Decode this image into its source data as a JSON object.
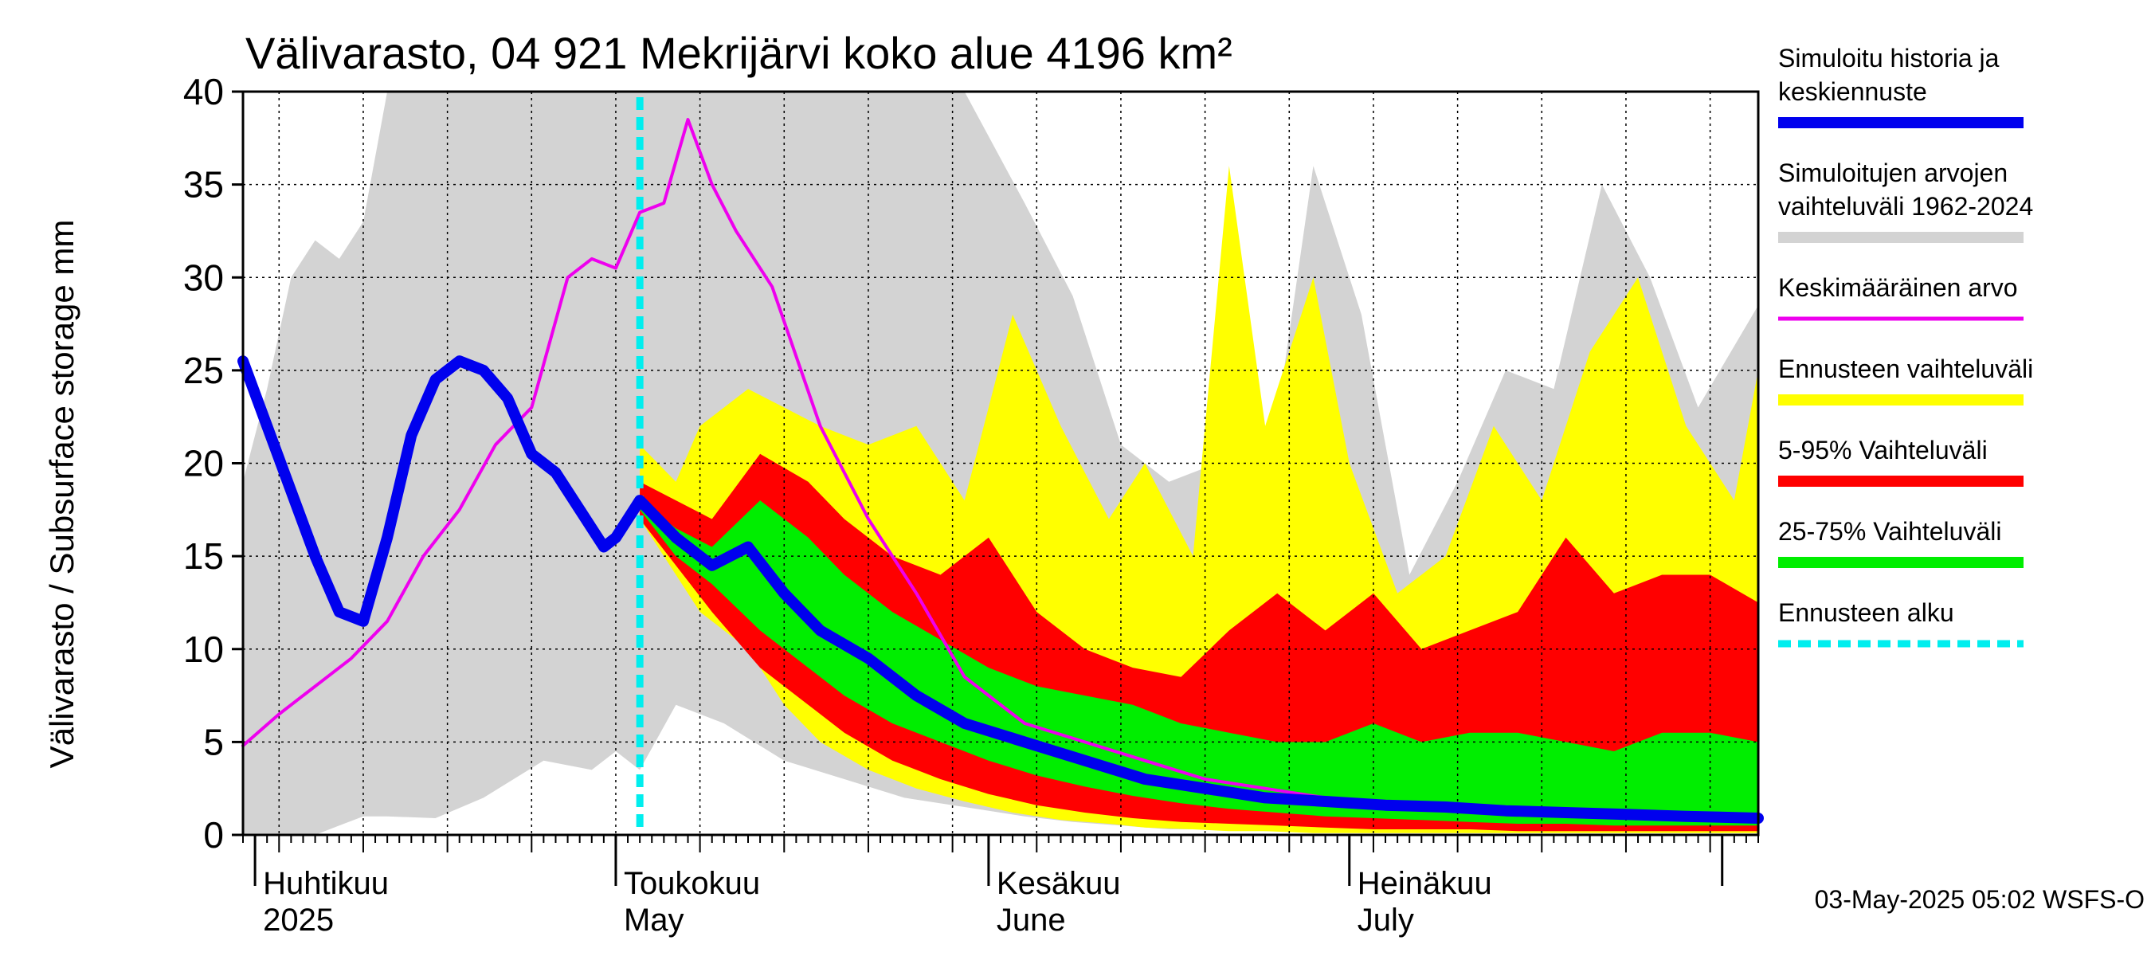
{
  "chart_data": {
    "type": "area",
    "title": "Välivarasto, 04 921 Mekrijärvi koko alue 4196 km²",
    "ylabel": "Välivarasto / Subsurface storage  mm",
    "xlabel": "",
    "ylim": [
      0,
      40
    ],
    "yticks": [
      0,
      5,
      10,
      15,
      20,
      25,
      30,
      35,
      40
    ],
    "x_start": "2025-03-31",
    "x_end": "2025-08-04",
    "grid": true,
    "month_labels": [
      {
        "top": "Huhtikuu",
        "bottom": "2025",
        "date": "2025-04-01"
      },
      {
        "top": "Toukokuu",
        "bottom": "May",
        "date": "2025-05-01"
      },
      {
        "top": "Kesäkuu",
        "bottom": "June",
        "date": "2025-06-01"
      },
      {
        "top": "Heinäkuu",
        "bottom": "July",
        "date": "2025-07-01"
      }
    ],
    "forecast_start": "2025-05-03",
    "colors": {
      "history_range": "#d3d3d3",
      "forecast_range": "#ffff00",
      "p5_95": "#ff0000",
      "p25_75": "#00ee00",
      "simulated": "#0000ee",
      "mean": "#ee00ee",
      "forecast_start": "#00eeee"
    },
    "series": [
      {
        "name": "Simuloitujen arvojen vaihteluväli 1962-2024",
        "kind": "band",
        "color": "#d3d3d3",
        "x": [
          "2025-03-31",
          "2025-04-02",
          "2025-04-04",
          "2025-04-06",
          "2025-04-08",
          "2025-04-10",
          "2025-04-12",
          "2025-04-16",
          "2025-04-20",
          "2025-04-25",
          "2025-04-29",
          "2025-05-01",
          "2025-05-03",
          "2025-05-06",
          "2025-05-10",
          "2025-05-15",
          "2025-05-20",
          "2025-05-25",
          "2025-05-30",
          "2025-06-04",
          "2025-06-08",
          "2025-06-12",
          "2025-06-16",
          "2025-06-20",
          "2025-06-24",
          "2025-06-28",
          "2025-07-02",
          "2025-07-06",
          "2025-07-10",
          "2025-07-14",
          "2025-07-18",
          "2025-07-22",
          "2025-07-26",
          "2025-07-30",
          "2025-08-04"
        ],
        "high": [
          19,
          24,
          30,
          32,
          31,
          33,
          40,
          40,
          40,
          40,
          40,
          40,
          40,
          40,
          40,
          40,
          40,
          40,
          40,
          34,
          29,
          21,
          19,
          20,
          18,
          36,
          28,
          14,
          19,
          25,
          24,
          35,
          30,
          23,
          28.5
        ],
        "low": [
          0,
          0,
          0,
          0,
          0.5,
          1,
          1,
          0.9,
          2,
          4,
          3.5,
          4.5,
          3.5,
          7,
          6,
          4,
          3,
          2,
          1.5,
          1,
          0.7,
          0.5,
          0.3,
          0.3,
          0.2,
          0.2,
          0.1,
          0.1,
          0.1,
          0.1,
          0.1,
          0.1,
          0.1,
          0.1,
          0.1
        ]
      },
      {
        "name": "Ennusteen vaihteluväli",
        "kind": "band",
        "color": "#ffff00",
        "x": [
          "2025-05-03",
          "2025-05-06",
          "2025-05-08",
          "2025-05-12",
          "2025-05-15",
          "2025-05-18",
          "2025-05-22",
          "2025-05-26",
          "2025-05-30",
          "2025-06-03",
          "2025-06-07",
          "2025-06-11",
          "2025-06-14",
          "2025-06-18",
          "2025-06-21",
          "2025-06-24",
          "2025-06-28",
          "2025-07-01",
          "2025-07-05",
          "2025-07-09",
          "2025-07-13",
          "2025-07-17",
          "2025-07-21",
          "2025-07-25",
          "2025-07-29",
          "2025-08-02",
          "2025-08-04"
        ],
        "high": [
          21,
          19,
          22,
          24,
          23,
          22,
          21,
          22,
          18,
          28,
          22,
          17,
          20,
          15,
          36,
          22,
          30,
          20,
          13,
          15,
          22,
          18,
          26,
          30,
          22,
          18,
          25
        ],
        "low": [
          17,
          14,
          12,
          10,
          7,
          5,
          3.5,
          2.5,
          1.8,
          1.2,
          0.8,
          0.6,
          0.4,
          0.3,
          0.2,
          0.2,
          0.1,
          0.1,
          0.1,
          0.1,
          0.1,
          0.1,
          0.1,
          0.1,
          0.1,
          0.1,
          0.1
        ]
      },
      {
        "name": "5-95% Vaihteluväli",
        "kind": "band",
        "color": "#ff0000",
        "x": [
          "2025-05-03",
          "2025-05-06",
          "2025-05-09",
          "2025-05-13",
          "2025-05-17",
          "2025-05-20",
          "2025-05-24",
          "2025-05-28",
          "2025-06-01",
          "2025-06-05",
          "2025-06-09",
          "2025-06-13",
          "2025-06-17",
          "2025-06-21",
          "2025-06-25",
          "2025-06-29",
          "2025-07-03",
          "2025-07-07",
          "2025-07-11",
          "2025-07-15",
          "2025-07-19",
          "2025-07-23",
          "2025-07-27",
          "2025-07-31",
          "2025-08-04"
        ],
        "high": [
          19,
          18,
          17,
          20.5,
          19,
          17,
          15,
          14,
          16,
          12,
          10,
          9,
          8.5,
          11,
          13,
          11,
          13,
          10,
          11,
          12,
          16,
          13,
          14,
          14,
          12.5
        ],
        "low": [
          17,
          14.5,
          12,
          9,
          7,
          5.5,
          4,
          3,
          2.2,
          1.6,
          1.2,
          0.9,
          0.7,
          0.6,
          0.5,
          0.4,
          0.3,
          0.3,
          0.3,
          0.2,
          0.2,
          0.2,
          0.2,
          0.2,
          0.2
        ]
      },
      {
        "name": "25-75% Vaihteluväli",
        "kind": "band",
        "color": "#00ee00",
        "x": [
          "2025-05-03",
          "2025-05-06",
          "2025-05-09",
          "2025-05-13",
          "2025-05-17",
          "2025-05-20",
          "2025-05-24",
          "2025-05-28",
          "2025-06-01",
          "2025-06-05",
          "2025-06-09",
          "2025-06-13",
          "2025-06-17",
          "2025-06-21",
          "2025-06-25",
          "2025-06-29",
          "2025-07-03",
          "2025-07-07",
          "2025-07-11",
          "2025-07-15",
          "2025-07-19",
          "2025-07-23",
          "2025-07-27",
          "2025-07-31",
          "2025-08-04"
        ],
        "high": [
          18,
          16.5,
          15.5,
          18,
          16,
          14,
          12,
          10.5,
          9,
          8,
          7.5,
          7,
          6,
          5.5,
          5,
          5,
          6,
          5,
          5.5,
          5.5,
          5,
          4.5,
          5.5,
          5.5,
          5
        ],
        "low": [
          17.5,
          15,
          13.5,
          11,
          9,
          7.5,
          6,
          5,
          4,
          3.2,
          2.6,
          2.1,
          1.7,
          1.4,
          1.2,
          1,
          0.9,
          0.8,
          0.7,
          0.6,
          0.6,
          0.5,
          0.5,
          0.5,
          0.5
        ]
      },
      {
        "name": "Keskimääräinen arvo",
        "kind": "line",
        "color": "#ee00ee",
        "x": [
          "2025-03-31",
          "2025-04-03",
          "2025-04-06",
          "2025-04-09",
          "2025-04-12",
          "2025-04-15",
          "2025-04-18",
          "2025-04-21",
          "2025-04-24",
          "2025-04-27",
          "2025-04-29",
          "2025-05-01",
          "2025-05-03",
          "2025-05-05",
          "2025-05-07",
          "2025-05-09",
          "2025-05-11",
          "2025-05-14",
          "2025-05-18",
          "2025-05-22",
          "2025-05-26",
          "2025-05-30",
          "2025-06-04",
          "2025-06-09",
          "2025-06-14",
          "2025-06-19",
          "2025-06-24",
          "2025-06-29",
          "2025-07-04",
          "2025-07-09",
          "2025-07-14",
          "2025-07-19",
          "2025-07-24",
          "2025-07-29",
          "2025-08-04"
        ],
        "y": [
          4.8,
          6.5,
          8,
          9.5,
          11.5,
          15,
          17.5,
          21,
          23,
          30,
          31,
          30.5,
          33.5,
          34,
          38.5,
          35,
          32.5,
          29.5,
          22,
          17,
          13,
          8.5,
          6,
          5,
          4,
          3,
          2.5,
          2,
          1.8,
          1.5,
          1.3,
          1.2,
          1.1,
          1,
          0.9
        ]
      },
      {
        "name": "Simuloitu historia ja keskiennuste",
        "kind": "line",
        "color": "#0000ee",
        "x": [
          "2025-03-31",
          "2025-04-02",
          "2025-04-04",
          "2025-04-06",
          "2025-04-08",
          "2025-04-10",
          "2025-04-12",
          "2025-04-14",
          "2025-04-16",
          "2025-04-18",
          "2025-04-20",
          "2025-04-22",
          "2025-04-24",
          "2025-04-26",
          "2025-04-28",
          "2025-04-30",
          "2025-05-01",
          "2025-05-03",
          "2025-05-06",
          "2025-05-09",
          "2025-05-12",
          "2025-05-15",
          "2025-05-18",
          "2025-05-22",
          "2025-05-26",
          "2025-05-30",
          "2025-06-04",
          "2025-06-09",
          "2025-06-14",
          "2025-06-19",
          "2025-06-24",
          "2025-06-29",
          "2025-07-04",
          "2025-07-09",
          "2025-07-14",
          "2025-07-19",
          "2025-07-24",
          "2025-07-29",
          "2025-08-04"
        ],
        "y": [
          25.5,
          22,
          18.5,
          15,
          12,
          11.5,
          16,
          21.5,
          24.5,
          25.5,
          25,
          23.5,
          20.5,
          19.5,
          17.5,
          15.5,
          16,
          18,
          16,
          14.5,
          15.5,
          13,
          11,
          9.5,
          7.5,
          6,
          5,
          4,
          3,
          2.5,
          2,
          1.8,
          1.6,
          1.5,
          1.3,
          1.2,
          1.1,
          1,
          0.9
        ]
      }
    ],
    "legend": [
      {
        "label": "Simuloitu historia ja keskiennuste",
        "color": "#0000ee",
        "style": "thick-line"
      },
      {
        "label": "Simuloitujen arvojen vaihteluväli 1962-2024",
        "color": "#d3d3d3",
        "style": "thick-line"
      },
      {
        "label": "Keskimääräinen arvo",
        "color": "#ee00ee",
        "style": "line"
      },
      {
        "label": "Ennusteen vaihteluväli",
        "color": "#ffff00",
        "style": "thick-line"
      },
      {
        "label": "5-95% Vaihteluväli",
        "color": "#ff0000",
        "style": "thick-line"
      },
      {
        "label": "25-75% Vaihteluväli",
        "color": "#00ee00",
        "style": "thick-line"
      },
      {
        "label": "Ennusteen alku",
        "color": "#00eeee",
        "style": "dashed"
      }
    ],
    "legend_lines": [
      [
        "Simuloitu historia ja",
        "keskiennuste"
      ],
      [
        "Simuloitujen arvojen",
        "vaihteluväli 1962-2024"
      ],
      [
        "Keskimääräinen arvo"
      ],
      [
        "Ennusteen vaihteluväli"
      ],
      [
        "5-95% Vaihteluväli"
      ],
      [
        "25-75% Vaihteluväli"
      ],
      [
        "Ennusteen alku"
      ]
    ],
    "legend_placement": "right",
    "footer": "03-May-2025 05:02 WSFS-O"
  }
}
